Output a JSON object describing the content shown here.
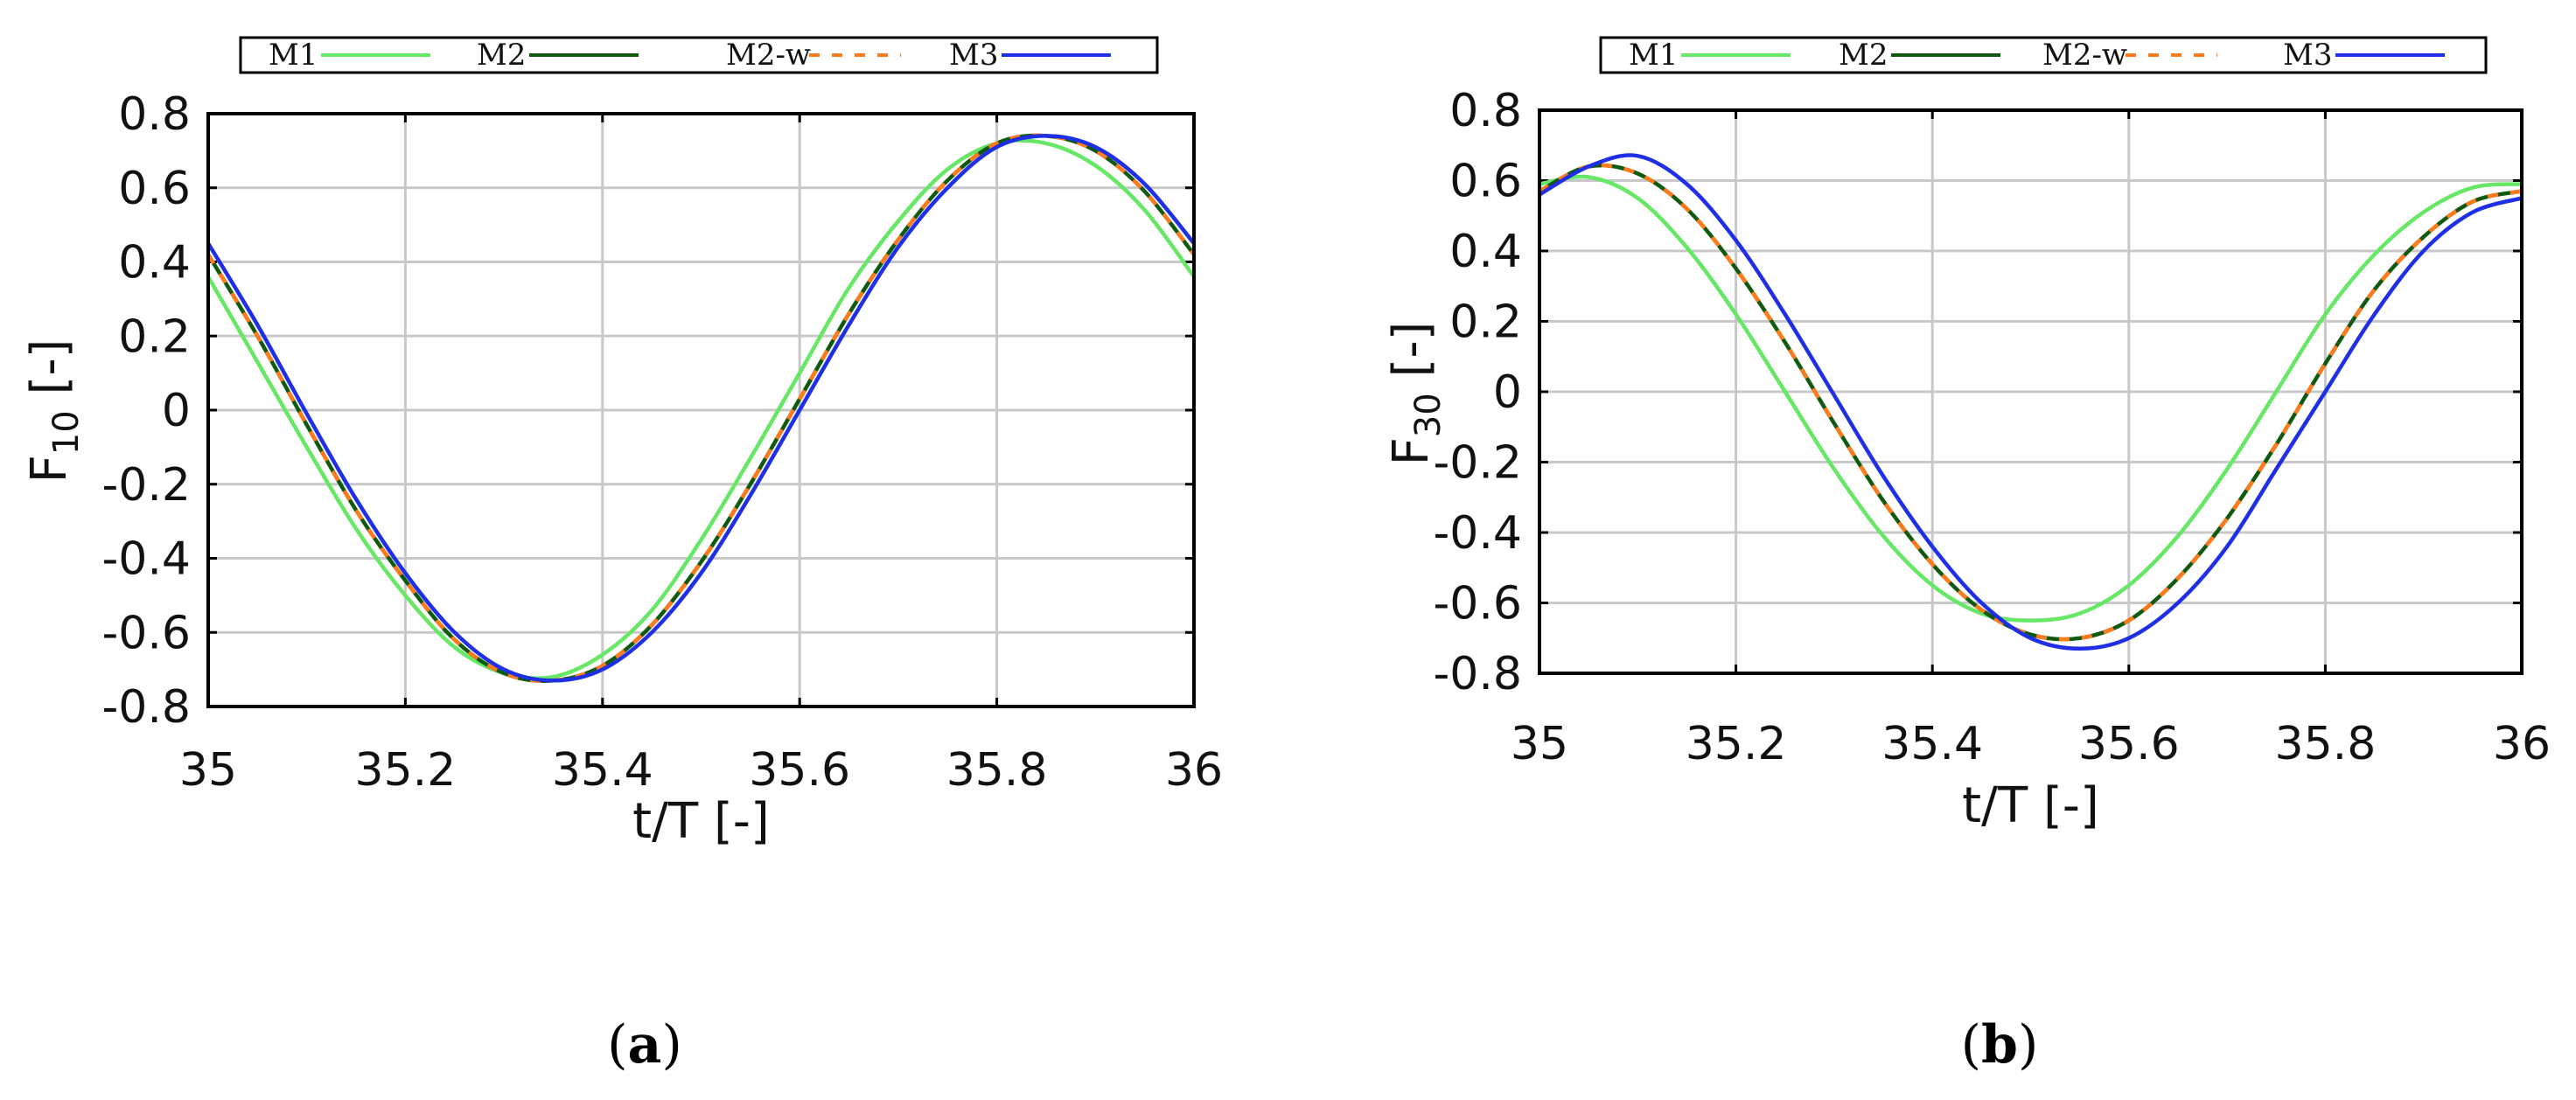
{
  "chart_data": [
    {
      "type": "line",
      "panel": "a",
      "caption_letter": "a",
      "caption_open": "(",
      "caption_close": ")",
      "ylabel_main": "F",
      "ylabel_sub": "10",
      "ylabel_unit": " [-]",
      "xlabel": "t/T [-]",
      "xlim": [
        35,
        36
      ],
      "ylim": [
        -0.8,
        0.8
      ],
      "xticks": [
        35,
        35.2,
        35.4,
        35.6,
        35.8,
        36
      ],
      "xtick_labels": [
        "35",
        "35.2",
        "35.4",
        "35.6",
        "35.8",
        "36"
      ],
      "yticks": [
        0.8,
        0.6,
        0.4,
        0.2,
        0,
        -0.2,
        -0.4,
        -0.6,
        -0.8
      ],
      "ytick_labels": [
        "0.8",
        "0.6",
        "0.4",
        "0.2",
        "0",
        "-0.2",
        "-0.4",
        "-0.6",
        "-0.8"
      ],
      "grid": true,
      "legend_position": "top",
      "x": [
        35.0,
        35.05,
        35.1,
        35.15,
        35.2,
        35.25,
        35.3,
        35.35,
        35.4,
        35.45,
        35.5,
        35.55,
        35.6,
        35.65,
        35.7,
        35.75,
        35.8,
        35.85,
        35.9,
        35.95,
        36.0
      ],
      "series": [
        {
          "name": "M1",
          "color": "#66e866",
          "dash": "none",
          "values": [
            0.36,
            0.13,
            -0.1,
            -0.32,
            -0.5,
            -0.64,
            -0.71,
            -0.72,
            -0.66,
            -0.54,
            -0.35,
            -0.13,
            0.1,
            0.33,
            0.51,
            0.65,
            0.72,
            0.72,
            0.66,
            0.54,
            0.36
          ]
        },
        {
          "name": "M2",
          "color": "#0f5a0f",
          "dash": "none",
          "values": [
            0.42,
            0.2,
            -0.04,
            -0.27,
            -0.46,
            -0.62,
            -0.71,
            -0.73,
            -0.69,
            -0.58,
            -0.41,
            -0.2,
            0.03,
            0.26,
            0.46,
            0.62,
            0.72,
            0.74,
            0.7,
            0.59,
            0.42
          ]
        },
        {
          "name": "M2-w",
          "color": "#ff7a1a",
          "dash": "12 14",
          "values": [
            0.42,
            0.2,
            -0.04,
            -0.27,
            -0.46,
            -0.62,
            -0.71,
            -0.73,
            -0.69,
            -0.58,
            -0.41,
            -0.2,
            0.03,
            0.26,
            0.46,
            0.62,
            0.72,
            0.74,
            0.7,
            0.59,
            0.42
          ]
        },
        {
          "name": "M3",
          "color": "#1f2fe6",
          "dash": "none",
          "values": [
            0.45,
            0.23,
            -0.01,
            -0.24,
            -0.44,
            -0.6,
            -0.7,
            -0.73,
            -0.7,
            -0.6,
            -0.44,
            -0.23,
            0.0,
            0.23,
            0.44,
            0.6,
            0.71,
            0.74,
            0.71,
            0.61,
            0.45
          ]
        }
      ]
    },
    {
      "type": "line",
      "panel": "b",
      "caption_letter": "b",
      "caption_open": "(",
      "caption_close": ")",
      "ylabel_main": "F",
      "ylabel_sub": "30",
      "ylabel_unit": " [-]",
      "xlabel": "t/T [-]",
      "xlim": [
        35,
        36
      ],
      "ylim": [
        -0.8,
        0.8
      ],
      "xticks": [
        35,
        35.2,
        35.4,
        35.6,
        35.8,
        36
      ],
      "xtick_labels": [
        "35",
        "35.2",
        "35.4",
        "35.6",
        "35.8",
        "36"
      ],
      "yticks": [
        0.8,
        0.6,
        0.4,
        0.2,
        0,
        -0.2,
        -0.4,
        -0.6,
        -0.8
      ],
      "ytick_labels": [
        "0.8",
        "0.6",
        "0.4",
        "0.2",
        "0",
        "-0.2",
        "-0.4",
        "-0.6",
        "-0.8"
      ],
      "grid": true,
      "legend_position": "top",
      "x": [
        35.0,
        35.05,
        35.1,
        35.15,
        35.2,
        35.25,
        35.3,
        35.35,
        35.4,
        35.45,
        35.5,
        35.55,
        35.6,
        35.65,
        35.7,
        35.75,
        35.8,
        35.85,
        35.9,
        35.95,
        36.0
      ],
      "series": [
        {
          "name": "M1",
          "color": "#66e866",
          "dash": "none",
          "values": [
            0.59,
            0.61,
            0.55,
            0.41,
            0.22,
            0.0,
            -0.22,
            -0.41,
            -0.55,
            -0.63,
            -0.65,
            -0.63,
            -0.55,
            -0.41,
            -0.22,
            0.0,
            0.22,
            0.39,
            0.51,
            0.58,
            0.59
          ]
        },
        {
          "name": "M2",
          "color": "#0f5a0f",
          "dash": "none",
          "values": [
            0.57,
            0.64,
            0.62,
            0.52,
            0.35,
            0.14,
            -0.09,
            -0.31,
            -0.49,
            -0.62,
            -0.69,
            -0.7,
            -0.65,
            -0.53,
            -0.36,
            -0.15,
            0.08,
            0.29,
            0.44,
            0.54,
            0.57
          ]
        },
        {
          "name": "M2-w",
          "color": "#ff7a1a",
          "dash": "12 14",
          "values": [
            0.57,
            0.64,
            0.62,
            0.52,
            0.35,
            0.14,
            -0.09,
            -0.31,
            -0.49,
            -0.62,
            -0.69,
            -0.7,
            -0.65,
            -0.53,
            -0.36,
            -0.15,
            0.08,
            0.29,
            0.44,
            0.54,
            0.57
          ]
        },
        {
          "name": "M3",
          "color": "#1f2fe6",
          "dash": "none",
          "values": [
            0.56,
            0.64,
            0.67,
            0.59,
            0.43,
            0.22,
            -0.01,
            -0.24,
            -0.44,
            -0.6,
            -0.7,
            -0.73,
            -0.7,
            -0.6,
            -0.44,
            -0.22,
            0.0,
            0.22,
            0.4,
            0.51,
            0.55
          ]
        }
      ]
    }
  ]
}
